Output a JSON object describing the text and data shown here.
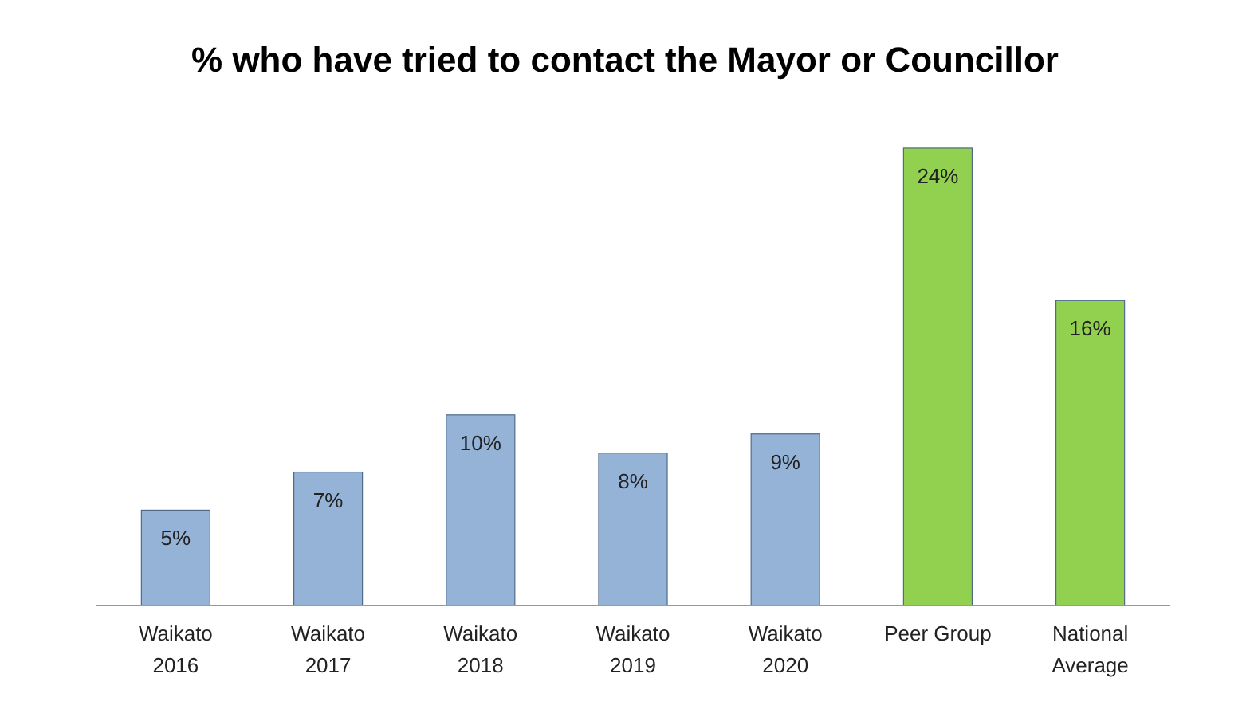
{
  "chart_data": {
    "type": "bar",
    "title": "% who have tried to contact the Mayor or Councillor",
    "categories": [
      "Waikato 2016",
      "Waikato 2017",
      "Waikato 2018",
      "Waikato 2019",
      "Waikato 2020",
      "Peer Group",
      "National Average"
    ],
    "values": [
      5,
      7,
      10,
      8,
      9,
      24,
      16
    ],
    "colors": [
      "#95b3d7",
      "#95b3d7",
      "#95b3d7",
      "#95b3d7",
      "#95b3d7",
      "#92d050",
      "#92d050"
    ],
    "value_labels": [
      "5%",
      "7%",
      "10%",
      "8%",
      "9%",
      "24%",
      "16%"
    ]
  }
}
